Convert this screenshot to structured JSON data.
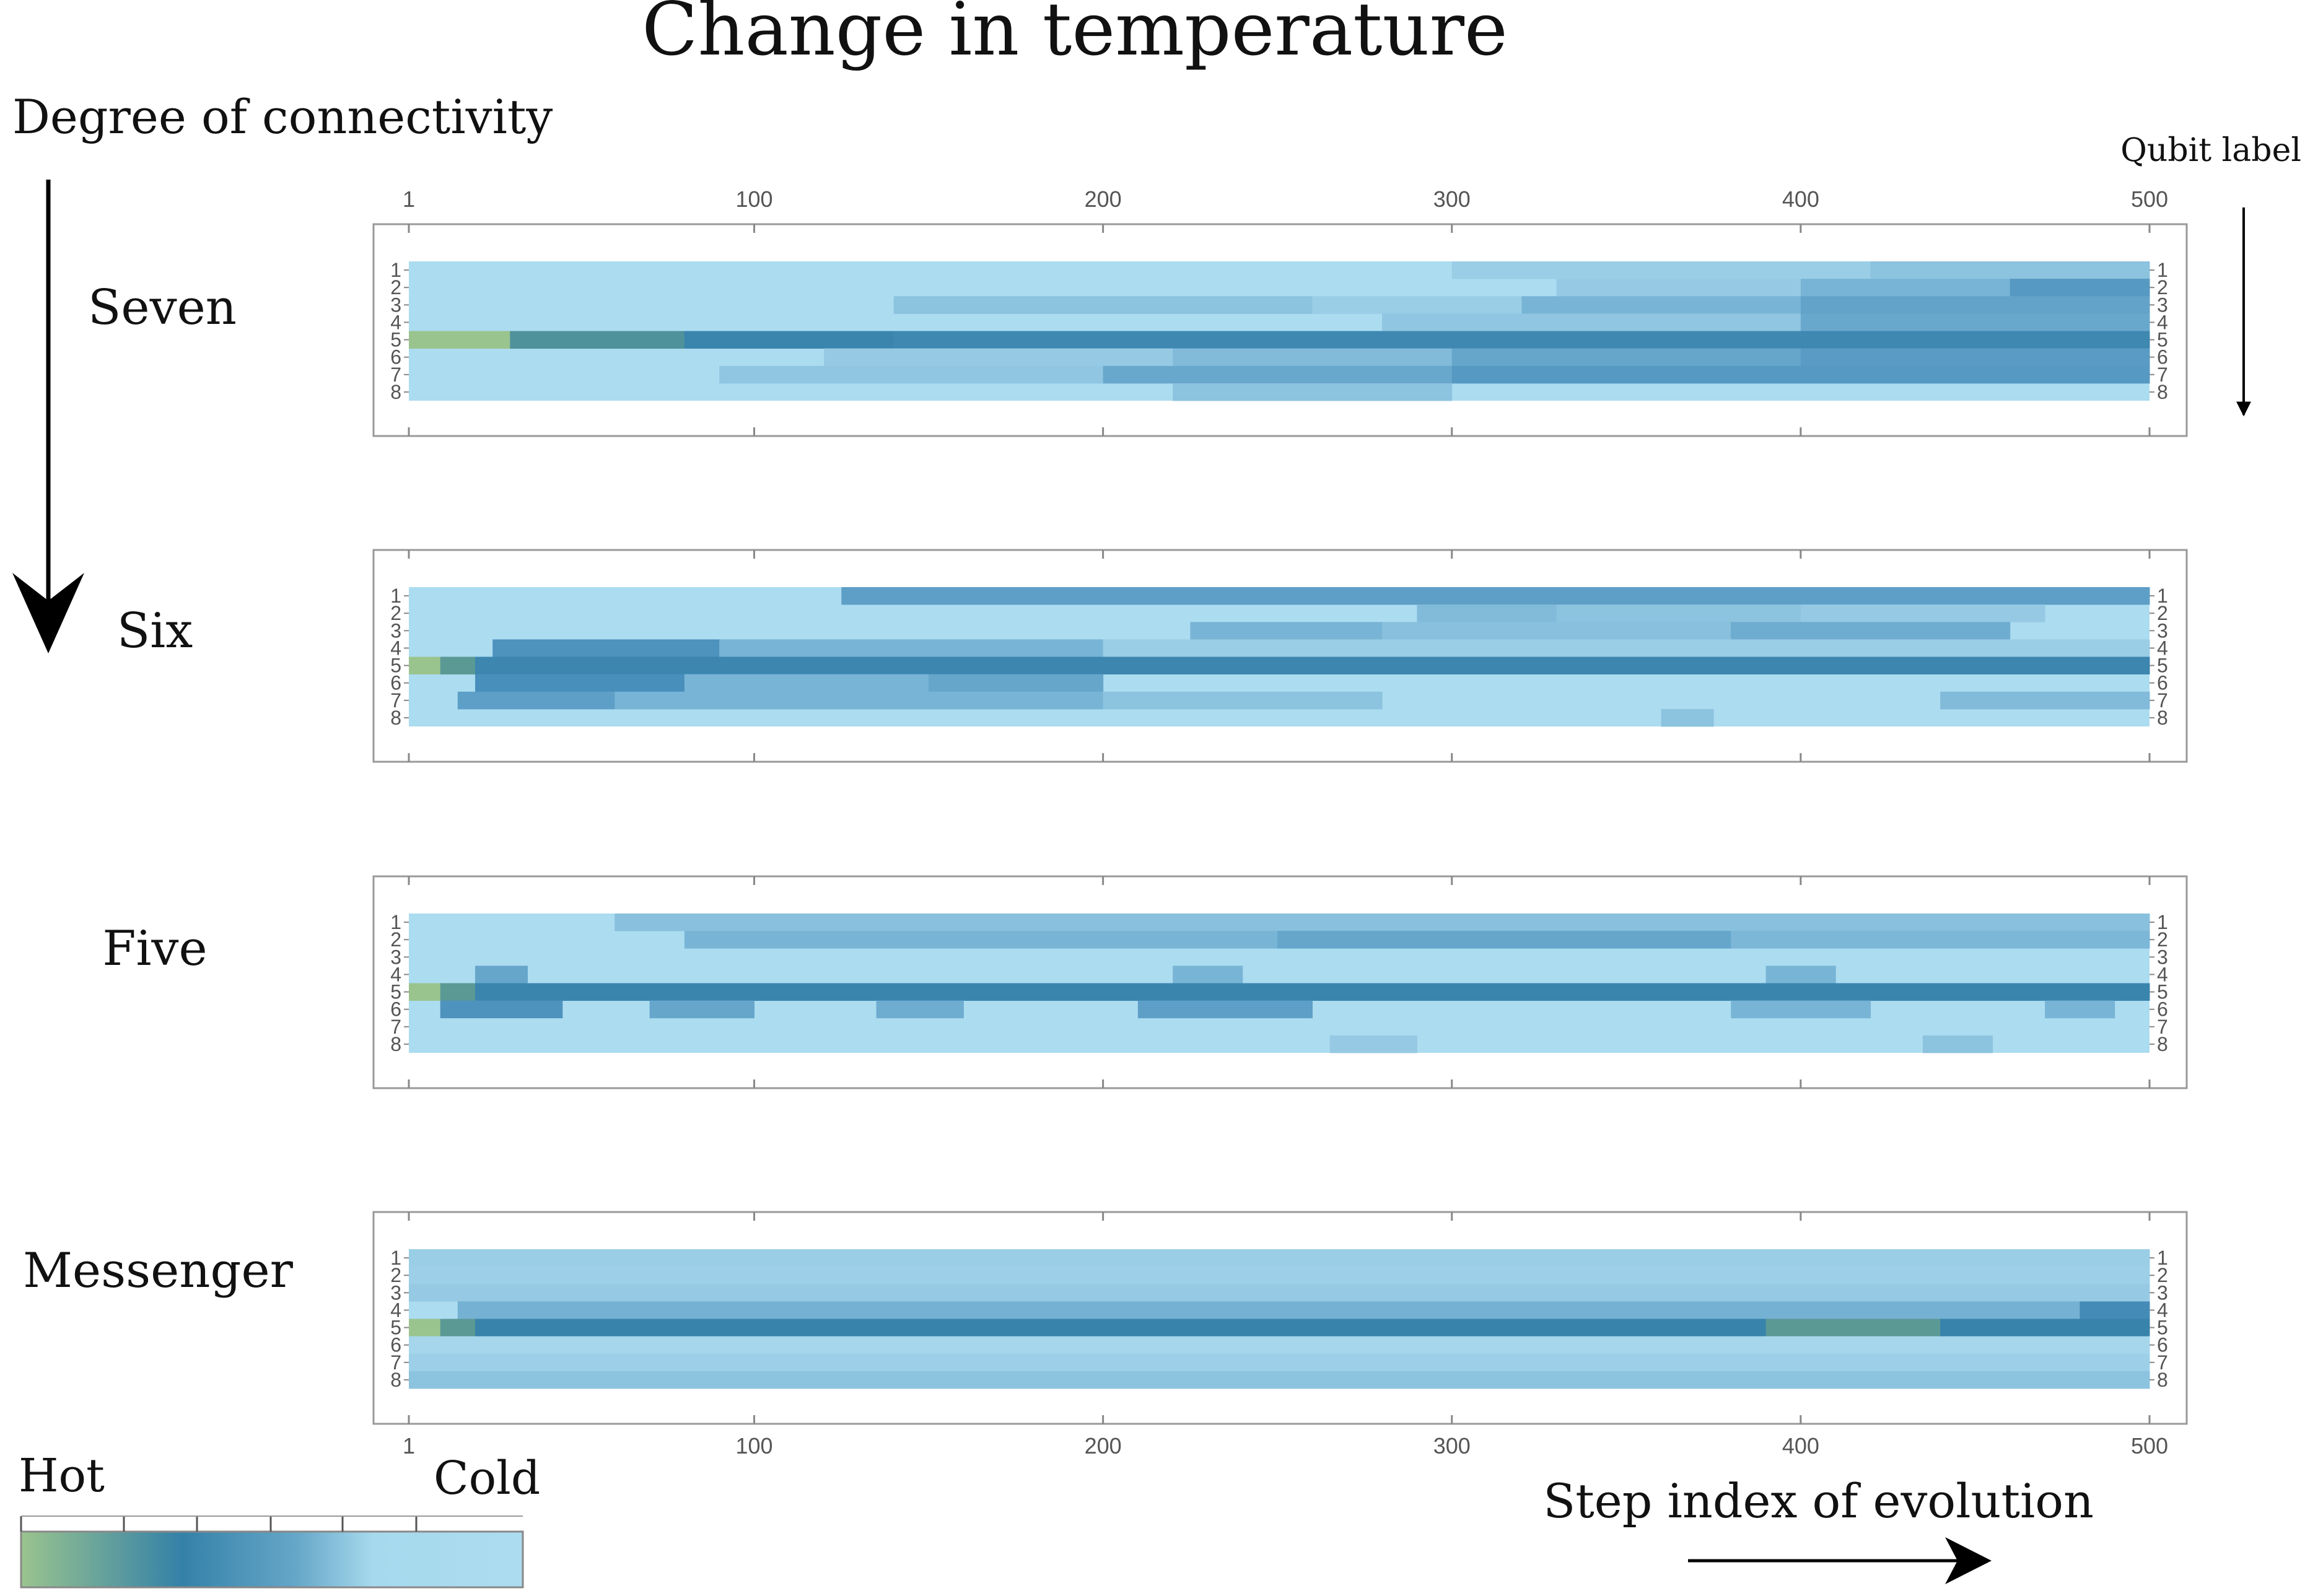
{
  "title": "Change in temperature",
  "y_annotation": "Degree of connectivity",
  "qubit_annotation": "Qubit label",
  "x_annotation": "Step index of evolution",
  "colorbar": {
    "hot_label": "Hot",
    "cold_label": "Cold",
    "stops": [
      "#9ac48e",
      "#3481a8",
      "#66a7c8",
      "#a6d9ed",
      "#acdcf0"
    ]
  },
  "chart_data": {
    "type": "heatmap",
    "x_ticks": [
      1,
      100,
      200,
      300,
      400,
      500
    ],
    "x_range": [
      1,
      500
    ],
    "qubits": [
      1,
      2,
      3,
      4,
      5,
      6,
      7,
      8
    ],
    "cold_value": 0.0,
    "scale_note": "",
    "panels": [
      {
        "label": "Seven",
        "rows": [
          {
            "qubit": 1,
            "segments": [
              [
                1,
                300,
                0.0
              ],
              [
                300,
                420,
                0.12
              ],
              [
                420,
                500,
                0.2
              ]
            ]
          },
          {
            "qubit": 2,
            "segments": [
              [
                1,
                330,
                0.0
              ],
              [
                330,
                400,
                0.15
              ],
              [
                400,
                460,
                0.3
              ],
              [
                460,
                500,
                0.5
              ]
            ]
          },
          {
            "qubit": 3,
            "segments": [
              [
                1,
                140,
                0.0
              ],
              [
                140,
                260,
                0.2
              ],
              [
                260,
                320,
                0.12
              ],
              [
                320,
                400,
                0.3
              ],
              [
                400,
                500,
                0.42
              ]
            ]
          },
          {
            "qubit": 4,
            "segments": [
              [
                1,
                280,
                0.0
              ],
              [
                280,
                400,
                0.18
              ],
              [
                400,
                500,
                0.38
              ]
            ]
          },
          {
            "qubit": 5,
            "segments": [
              [
                1,
                30,
                1.0
              ],
              [
                30,
                80,
                0.82
              ],
              [
                80,
                140,
                0.7
              ],
              [
                140,
                500,
                0.66
              ]
            ]
          },
          {
            "qubit": 6,
            "segments": [
              [
                1,
                120,
                0.0
              ],
              [
                120,
                220,
                0.15
              ],
              [
                220,
                300,
                0.25
              ],
              [
                300,
                400,
                0.4
              ],
              [
                400,
                500,
                0.48
              ]
            ]
          },
          {
            "qubit": 7,
            "segments": [
              [
                1,
                90,
                0.0
              ],
              [
                90,
                200,
                0.18
              ],
              [
                200,
                300,
                0.38
              ],
              [
                300,
                500,
                0.5
              ]
            ]
          },
          {
            "qubit": 8,
            "segments": [
              [
                1,
                220,
                0.0
              ],
              [
                220,
                300,
                0.2
              ],
              [
                300,
                500,
                0.0
              ]
            ]
          }
        ]
      },
      {
        "label": "Six",
        "rows": [
          {
            "qubit": 1,
            "segments": [
              [
                1,
                125,
                0.0
              ],
              [
                125,
                500,
                0.45
              ]
            ]
          },
          {
            "qubit": 2,
            "segments": [
              [
                1,
                290,
                0.0
              ],
              [
                290,
                330,
                0.25
              ],
              [
                330,
                400,
                0.2
              ],
              [
                400,
                470,
                0.15
              ],
              [
                470,
                500,
                0.0
              ]
            ]
          },
          {
            "qubit": 3,
            "segments": [
              [
                1,
                225,
                0.0
              ],
              [
                225,
                280,
                0.3
              ],
              [
                280,
                380,
                0.22
              ],
              [
                380,
                460,
                0.35
              ],
              [
                460,
                500,
                0.0
              ]
            ]
          },
          {
            "qubit": 4,
            "segments": [
              [
                1,
                25,
                0.0
              ],
              [
                25,
                90,
                0.55
              ],
              [
                90,
                200,
                0.3
              ],
              [
                200,
                500,
                0.12
              ]
            ]
          },
          {
            "qubit": 5,
            "segments": [
              [
                1,
                10,
                1.0
              ],
              [
                10,
                20,
                0.85
              ],
              [
                20,
                500,
                0.68
              ]
            ]
          },
          {
            "qubit": 6,
            "segments": [
              [
                1,
                20,
                0.0
              ],
              [
                20,
                80,
                0.58
              ],
              [
                80,
                150,
                0.3
              ],
              [
                150,
                200,
                0.4
              ],
              [
                200,
                500,
                0.0
              ]
            ]
          },
          {
            "qubit": 7,
            "segments": [
              [
                1,
                15,
                0.0
              ],
              [
                15,
                60,
                0.45
              ],
              [
                60,
                200,
                0.3
              ],
              [
                200,
                280,
                0.2
              ],
              [
                280,
                440,
                0.0
              ],
              [
                440,
                500,
                0.25
              ]
            ]
          },
          {
            "qubit": 8,
            "segments": [
              [
                1,
                360,
                0.0
              ],
              [
                360,
                375,
                0.2
              ],
              [
                375,
                500,
                0.0
              ]
            ]
          }
        ]
      },
      {
        "label": "Five",
        "rows": [
          {
            "qubit": 1,
            "segments": [
              [
                1,
                60,
                0.0
              ],
              [
                60,
                500,
                0.22
              ]
            ]
          },
          {
            "qubit": 2,
            "segments": [
              [
                1,
                80,
                0.0
              ],
              [
                80,
                250,
                0.3
              ],
              [
                250,
                380,
                0.4
              ],
              [
                380,
                500,
                0.28
              ]
            ]
          },
          {
            "qubit": 3,
            "segments": [
              [
                1,
                500,
                0.0
              ]
            ]
          },
          {
            "qubit": 4,
            "segments": [
              [
                1,
                20,
                0.0
              ],
              [
                20,
                35,
                0.4
              ],
              [
                35,
                220,
                0.0
              ],
              [
                220,
                240,
                0.3
              ],
              [
                240,
                390,
                0.0
              ],
              [
                390,
                410,
                0.3
              ],
              [
                410,
                500,
                0.0
              ]
            ]
          },
          {
            "qubit": 5,
            "segments": [
              [
                1,
                10,
                1.0
              ],
              [
                10,
                20,
                0.85
              ],
              [
                20,
                500,
                0.7
              ]
            ]
          },
          {
            "qubit": 6,
            "segments": [
              [
                1,
                10,
                0.0
              ],
              [
                10,
                45,
                0.55
              ],
              [
                45,
                70,
                0.0
              ],
              [
                70,
                100,
                0.4
              ],
              [
                100,
                135,
                0.0
              ],
              [
                135,
                160,
                0.35
              ],
              [
                160,
                210,
                0.0
              ],
              [
                210,
                260,
                0.45
              ],
              [
                260,
                380,
                0.0
              ],
              [
                380,
                420,
                0.3
              ],
              [
                420,
                470,
                0.0
              ],
              [
                470,
                490,
                0.3
              ],
              [
                490,
                500,
                0.0
              ]
            ]
          },
          {
            "qubit": 7,
            "segments": [
              [
                1,
                500,
                0.0
              ]
            ]
          },
          {
            "qubit": 8,
            "segments": [
              [
                1,
                265,
                0.0
              ],
              [
                265,
                290,
                0.15
              ],
              [
                290,
                435,
                0.0
              ],
              [
                435,
                455,
                0.2
              ],
              [
                455,
                500,
                0.0
              ]
            ]
          }
        ]
      },
      {
        "label": "Messenger",
        "rows": [
          {
            "qubit": 1,
            "segments": [
              [
                1,
                500,
                0.12
              ]
            ]
          },
          {
            "qubit": 2,
            "segments": [
              [
                1,
                500,
                0.1
              ]
            ]
          },
          {
            "qubit": 3,
            "segments": [
              [
                1,
                500,
                0.15
              ]
            ]
          },
          {
            "qubit": 4,
            "segments": [
              [
                1,
                15,
                0.0
              ],
              [
                15,
                480,
                0.32
              ],
              [
                480,
                500,
                0.62
              ]
            ]
          },
          {
            "qubit": 5,
            "segments": [
              [
                1,
                10,
                1.0
              ],
              [
                10,
                20,
                0.85
              ],
              [
                20,
                390,
                0.72
              ],
              [
                390,
                440,
                0.85
              ],
              [
                440,
                500,
                0.72
              ]
            ]
          },
          {
            "qubit": 6,
            "segments": [
              [
                1,
                500,
                0.05
              ]
            ]
          },
          {
            "qubit": 7,
            "segments": [
              [
                1,
                500,
                0.1
              ]
            ]
          },
          {
            "qubit": 8,
            "segments": [
              [
                1,
                500,
                0.2
              ]
            ]
          }
        ]
      }
    ]
  }
}
